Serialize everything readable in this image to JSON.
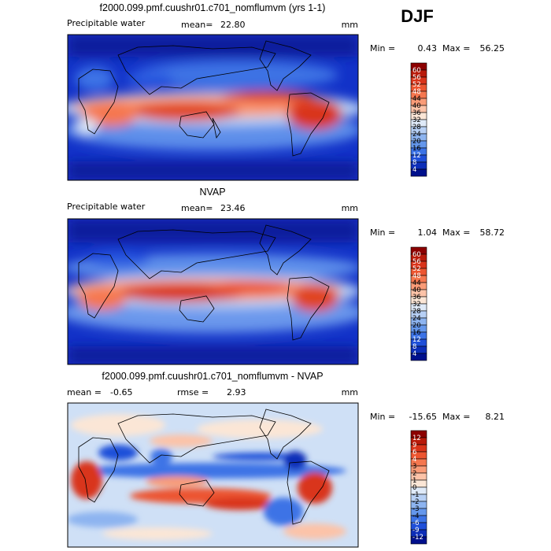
{
  "season": "DJF",
  "chart_data": [
    {
      "type": "heatmap",
      "title": "f2000.099.pmf.cuushr01.c701_nomflumvm (yrs 1-1)",
      "variable": "Precipitable water",
      "mean_label": "mean=",
      "mean": "22.80",
      "units": "mm",
      "min_label": "Min =",
      "min": "0.43",
      "max_label": "Max =",
      "max": "56.25",
      "colorbar_levels": [
        "60",
        "56",
        "52",
        "48",
        "44",
        "40",
        "36",
        "32",
        "28",
        "24",
        "20",
        "16",
        "12",
        "8",
        "4"
      ],
      "colorbar_colors": [
        "#8c0000",
        "#b81a0a",
        "#d9341a",
        "#ec5530",
        "#f5774f",
        "#f99b77",
        "#fcc3a8",
        "#fbe6d6",
        "#dfeaf8",
        "#b7d0f5",
        "#8db4f0",
        "#6497ec",
        "#3c73e6",
        "#1f4fd9",
        "#0d2eb8",
        "#00108c"
      ]
    },
    {
      "type": "heatmap",
      "title": "NVAP",
      "variable": "Precipitable water",
      "mean_label": "mean=",
      "mean": "23.46",
      "units": "mm",
      "min_label": "Min =",
      "min": "1.04",
      "max_label": "Max =",
      "max": "58.72",
      "colorbar_levels": [
        "60",
        "56",
        "52",
        "48",
        "44",
        "40",
        "36",
        "32",
        "28",
        "24",
        "20",
        "16",
        "12",
        "8",
        "4"
      ],
      "colorbar_colors": [
        "#8c0000",
        "#b81a0a",
        "#d9341a",
        "#ec5530",
        "#f5774f",
        "#f99b77",
        "#fcc3a8",
        "#fbe6d6",
        "#dfeaf8",
        "#b7d0f5",
        "#8db4f0",
        "#6497ec",
        "#3c73e6",
        "#1f4fd9",
        "#0d2eb8",
        "#00108c"
      ]
    },
    {
      "type": "heatmap",
      "title": "f2000.099.pmf.cuushr01.c701_nomflumvm - NVAP",
      "mean_label": "mean =",
      "mean": "-0.65",
      "rmse_label": "rmse =",
      "rmse": "2.93",
      "units": "mm",
      "min_label": "Min =",
      "min": "-15.65",
      "max_label": "Max =",
      "max": "8.21",
      "colorbar_levels": [
        "12",
        "9",
        "6",
        "4",
        "3",
        "2",
        "1",
        "0",
        "-1",
        "-2",
        "-3",
        "-4",
        "-6",
        "-9",
        "-12"
      ],
      "colorbar_colors": [
        "#8c0000",
        "#b81a0a",
        "#d9341a",
        "#ec5530",
        "#f5774f",
        "#f99b77",
        "#fcc3a8",
        "#fbe6d6",
        "#dfeaf8",
        "#b7d0f5",
        "#8db4f0",
        "#6497ec",
        "#3c73e6",
        "#1f4fd9",
        "#0d2eb8",
        "#00108c"
      ]
    }
  ]
}
